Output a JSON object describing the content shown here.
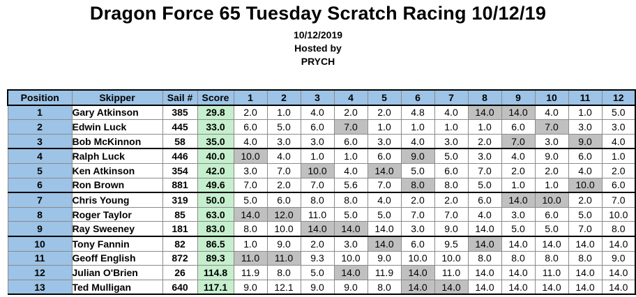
{
  "title": "Dragon Force 65 Tuesday Scratch Racing 10/12/19",
  "date": "10/12/2019",
  "hosted_by_label": "Hosted by",
  "host": "PRYCH",
  "columns": [
    "Position",
    "Skipper",
    "Sail #",
    "Score",
    "1",
    "2",
    "3",
    "4",
    "5",
    "6",
    "7",
    "8",
    "9",
    "10",
    "11",
    "12"
  ],
  "colors": {
    "header": "#9dc3e6",
    "score": "#c6efce",
    "discard": "#c0c0c0"
  },
  "rows": [
    {
      "pos": "1",
      "skipper": "Gary Atkinson",
      "sail": "385",
      "score": "29.8",
      "races": [
        "2.0",
        "1.0",
        "4.0",
        "2.0",
        "2.0",
        "4.8",
        "4.0",
        "14.0",
        "14.0",
        "4.0",
        "1.0",
        "5.0"
      ],
      "discards": [
        7,
        8
      ]
    },
    {
      "pos": "2",
      "skipper": "Edwin Luck",
      "sail": "445",
      "score": "33.0",
      "races": [
        "6.0",
        "5.0",
        "6.0",
        "7.0",
        "1.0",
        "1.0",
        "1.0",
        "1.0",
        "6.0",
        "7.0",
        "3.0",
        "3.0"
      ],
      "discards": [
        3,
        9
      ]
    },
    {
      "pos": "3",
      "skipper": "Bob McKinnon",
      "sail": "58",
      "score": "35.0",
      "races": [
        "4.0",
        "3.0",
        "3.0",
        "6.0",
        "3.0",
        "4.0",
        "3.0",
        "2.0",
        "7.0",
        "3.0",
        "9.0",
        "4.0"
      ],
      "discards": [
        8,
        10
      ]
    },
    {
      "pos": "4",
      "skipper": "Ralph Luck",
      "sail": "446",
      "score": "40.0",
      "races": [
        "10.0",
        "4.0",
        "1.0",
        "1.0",
        "6.0",
        "9.0",
        "5.0",
        "3.0",
        "4.0",
        "9.0",
        "6.0",
        "1.0"
      ],
      "discards": [
        0,
        5
      ]
    },
    {
      "pos": "5",
      "skipper": "Ken Atkinson",
      "sail": "354",
      "score": "42.0",
      "races": [
        "3.0",
        "7.0",
        "10.0",
        "4.0",
        "14.0",
        "5.0",
        "6.0",
        "7.0",
        "2.0",
        "2.0",
        "4.0",
        "2.0"
      ],
      "discards": [
        2,
        4
      ]
    },
    {
      "pos": "6",
      "skipper": "Ron Brown",
      "sail": "881",
      "score": "49.6",
      "races": [
        "7.0",
        "2.0",
        "7.0",
        "5.6",
        "7.0",
        "8.0",
        "8.0",
        "5.0",
        "1.0",
        "1.0",
        "10.0",
        "6.0"
      ],
      "discards": [
        5,
        10
      ]
    },
    {
      "pos": "7",
      "skipper": "Chris Young",
      "sail": "319",
      "score": "50.0",
      "races": [
        "5.0",
        "6.0",
        "8.0",
        "8.0",
        "4.0",
        "2.0",
        "2.0",
        "6.0",
        "14.0",
        "10.0",
        "2.0",
        "7.0"
      ],
      "discards": [
        8,
        9
      ]
    },
    {
      "pos": "8",
      "skipper": "Roger Taylor",
      "sail": "85",
      "score": "63.0",
      "races": [
        "14.0",
        "12.0",
        "11.0",
        "5.0",
        "5.0",
        "7.0",
        "7.0",
        "4.0",
        "3.0",
        "6.0",
        "5.0",
        "10.0"
      ],
      "discards": [
        0,
        1
      ]
    },
    {
      "pos": "9",
      "skipper": "Ray Sweeney",
      "sail": "181",
      "score": "83.0",
      "races": [
        "8.0",
        "10.0",
        "14.0",
        "14.0",
        "14.0",
        "3.0",
        "9.0",
        "14.0",
        "5.0",
        "5.0",
        "7.0",
        "8.0"
      ],
      "discards": [
        2,
        3
      ]
    },
    {
      "pos": "10",
      "skipper": "Tony Fannin",
      "sail": "82",
      "score": "86.5",
      "races": [
        "1.0",
        "9.0",
        "2.0",
        "3.0",
        "14.0",
        "6.0",
        "9.5",
        "14.0",
        "14.0",
        "14.0",
        "14.0",
        "14.0"
      ],
      "discards": [
        4,
        7
      ]
    },
    {
      "pos": "11",
      "skipper": "Geoff English",
      "sail": "872",
      "score": "89.3",
      "races": [
        "11.0",
        "11.0",
        "9.3",
        "10.0",
        "9.0",
        "10.0",
        "10.0",
        "8.0",
        "8.0",
        "8.0",
        "8.0",
        "9.0"
      ],
      "discards": [
        0,
        1
      ]
    },
    {
      "pos": "12",
      "skipper": "Julian O'Brien",
      "sail": "26",
      "score": "114.8",
      "races": [
        "11.9",
        "8.0",
        "5.0",
        "14.0",
        "11.9",
        "14.0",
        "11.0",
        "14.0",
        "14.0",
        "11.0",
        "14.0",
        "14.0"
      ],
      "discards": [
        3,
        5
      ]
    },
    {
      "pos": "13",
      "skipper": "Ted Mulligan",
      "sail": "640",
      "score": "117.1",
      "races": [
        "9.0",
        "12.1",
        "9.0",
        "9.0",
        "8.0",
        "14.0",
        "14.0",
        "14.0",
        "14.0",
        "14.0",
        "14.0",
        "14.0"
      ],
      "discards": [
        5,
        6
      ]
    }
  ]
}
